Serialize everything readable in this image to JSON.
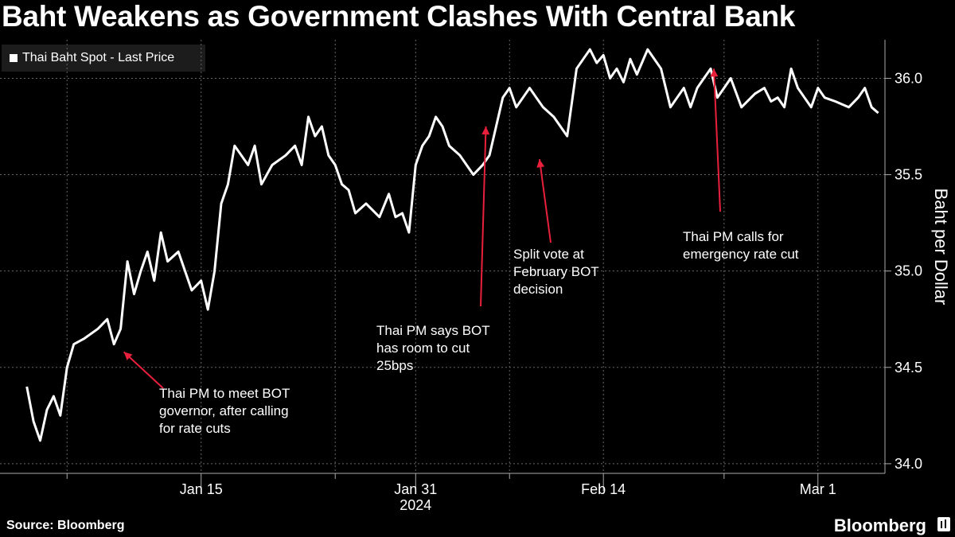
{
  "title": "Baht Weakens as Government Clashes With Central Bank",
  "source": "Source: Bloomberg",
  "brand": "Bloomberg",
  "chart_data": {
    "type": "line",
    "title": "Baht Weakens as Government Clashes With Central Bank",
    "ylabel": "Baht per Dollar",
    "xlabel": "",
    "ylim": [
      33.95,
      36.2
    ],
    "yticks": [
      34.0,
      34.5,
      35.0,
      35.5,
      36.0
    ],
    "ytick_labels": [
      "34.0",
      "34.5",
      "35.0",
      "35.5",
      "36.0"
    ],
    "x_start": "2024-01-02",
    "x_end": "2024-03-05",
    "x_domain": [
      "2023-12-31",
      "2024-03-06"
    ],
    "xticks": [
      {
        "date": "2024-01-15",
        "label": "Jan 15",
        "sublabel": ""
      },
      {
        "date": "2024-01-31",
        "label": "Jan 31",
        "sublabel": "2024"
      },
      {
        "date": "2024-02-14",
        "label": "Feb 14",
        "sublabel": ""
      },
      {
        "date": "2024-03-01",
        "label": "Mar 1",
        "sublabel": ""
      }
    ],
    "minor_gridlines": [
      "2024-01-05",
      "2024-01-25",
      "2024-02-07",
      "2024-02-23"
    ],
    "grid": true,
    "legend_position": "top-left",
    "colors": {
      "line": "#ffffff",
      "arrow": "#e8203c",
      "grid": "#666666"
    },
    "series": [
      {
        "name": "Thai Baht Spot - Last Price",
        "x": [
          "2024-01-02",
          "2024-01-02",
          "2024-01-03",
          "2024-01-03",
          "2024-01-04",
          "2024-01-04",
          "2024-01-05",
          "2024-01-05",
          "2024-01-06",
          "2024-01-07",
          "2024-01-08",
          "2024-01-08",
          "2024-01-09",
          "2024-01-09",
          "2024-01-10",
          "2024-01-10",
          "2024-01-11",
          "2024-01-11",
          "2024-01-12",
          "2024-01-12",
          "2024-01-13",
          "2024-01-14",
          "2024-01-15",
          "2024-01-15",
          "2024-01-16",
          "2024-01-16",
          "2024-01-17",
          "2024-01-17",
          "2024-01-18",
          "2024-01-18",
          "2024-01-19",
          "2024-01-19",
          "2024-01-20",
          "2024-01-21",
          "2024-01-22",
          "2024-01-22",
          "2024-01-23",
          "2024-01-23",
          "2024-01-24",
          "2024-01-24",
          "2024-01-25",
          "2024-01-25",
          "2024-01-26",
          "2024-01-26",
          "2024-01-27",
          "2024-01-28",
          "2024-01-29",
          "2024-01-29",
          "2024-01-30",
          "2024-01-30",
          "2024-01-31",
          "2024-01-31",
          "2024-02-01",
          "2024-02-01",
          "2024-02-02",
          "2024-02-02",
          "2024-02-03",
          "2024-02-04",
          "2024-02-05",
          "2024-02-05",
          "2024-02-06",
          "2024-02-06",
          "2024-02-07",
          "2024-02-07",
          "2024-02-08",
          "2024-02-08",
          "2024-02-09",
          "2024-02-09",
          "2024-02-10",
          "2024-02-11",
          "2024-02-12",
          "2024-02-12",
          "2024-02-13",
          "2024-02-13",
          "2024-02-14",
          "2024-02-14",
          "2024-02-15",
          "2024-02-15",
          "2024-02-16",
          "2024-02-16",
          "2024-02-17",
          "2024-02-18",
          "2024-02-19",
          "2024-02-19",
          "2024-02-20",
          "2024-02-20",
          "2024-02-21",
          "2024-02-21",
          "2024-02-22",
          "2024-02-22",
          "2024-02-23",
          "2024-02-23",
          "2024-02-24",
          "2024-02-25",
          "2024-02-26",
          "2024-02-26",
          "2024-02-27",
          "2024-02-27",
          "2024-02-28",
          "2024-02-28",
          "2024-02-29",
          "2024-02-29",
          "2024-03-01",
          "2024-03-01",
          "2024-03-02",
          "2024-03-03",
          "2024-03-04",
          "2024-03-04",
          "2024-03-05",
          "2024-03-05"
        ],
        "y": [
          34.4,
          34.22,
          34.12,
          34.28,
          34.35,
          34.25,
          34.5,
          34.62,
          34.65,
          34.7,
          34.75,
          34.62,
          34.7,
          35.05,
          34.88,
          35.0,
          35.1,
          34.95,
          35.2,
          35.05,
          35.1,
          34.9,
          34.95,
          34.8,
          35.0,
          35.35,
          35.45,
          35.65,
          35.6,
          35.55,
          35.65,
          35.45,
          35.55,
          35.6,
          35.65,
          35.55,
          35.8,
          35.7,
          35.75,
          35.6,
          35.55,
          35.45,
          35.42,
          35.3,
          35.35,
          35.28,
          35.4,
          35.28,
          35.3,
          35.2,
          35.55,
          35.65,
          35.7,
          35.8,
          35.75,
          35.65,
          35.6,
          35.5,
          35.55,
          35.6,
          35.75,
          35.9,
          35.95,
          35.85,
          35.9,
          35.95,
          35.9,
          35.85,
          35.8,
          35.7,
          36.05,
          36.1,
          36.15,
          36.08,
          36.12,
          36.0,
          36.05,
          35.98,
          36.1,
          36.02,
          36.15,
          36.05,
          35.85,
          35.9,
          35.95,
          35.85,
          35.95,
          36.0,
          36.05,
          35.9,
          35.95,
          36.0,
          35.85,
          35.92,
          35.95,
          35.88,
          35.9,
          35.85,
          36.05,
          35.95,
          35.9,
          35.85,
          35.95,
          35.9,
          35.88,
          35.85,
          35.9,
          35.95,
          35.85,
          35.82
        ]
      }
    ],
    "annotations": [
      {
        "text": [
          "Thai PM to meet BOT",
          "governor, after calling",
          "for rate cuts"
        ],
        "point_date": "2024-01-09",
        "point_value": 34.58
      },
      {
        "text": [
          "Thai PM says BOT",
          "has room to cut",
          "25bps"
        ],
        "point_date": "2024-02-05",
        "point_value": 35.75
      },
      {
        "text": [
          "Split vote at",
          "February BOT",
          "decision"
        ],
        "point_date": "2024-02-09",
        "point_value": 35.58
      },
      {
        "text": [
          "Thai PM calls for",
          "emergency rate cut"
        ],
        "point_date": "2024-02-22",
        "point_value": 36.05
      }
    ]
  }
}
